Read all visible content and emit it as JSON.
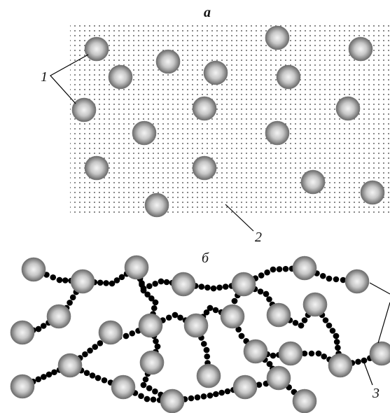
{
  "panel_a": {
    "label": "а",
    "callout_1": "1",
    "callout_2": "2"
  },
  "panel_b": {
    "label": "б",
    "callout_3": "3"
  }
}
